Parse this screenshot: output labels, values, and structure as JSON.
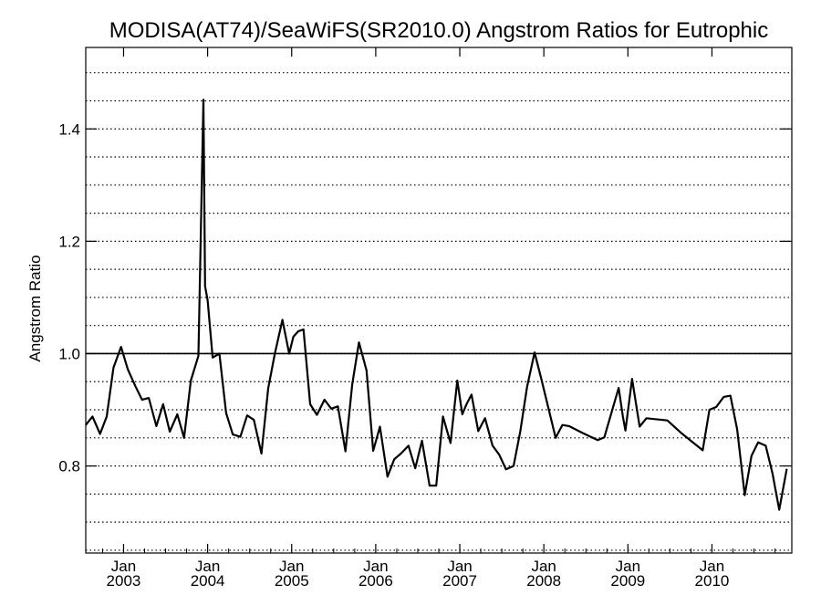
{
  "chart_data": {
    "type": "line",
    "title": "MODISA(AT74)/SeaWiFS(SR2010.0)  Angstrom Ratios for Eutrophic",
    "xlabel": "",
    "ylabel": "Angstrom Ratio",
    "xlim": [
      2002.55,
      2010.95
    ],
    "ylim": [
      0.645,
      1.545
    ],
    "y_ticks": [
      {
        "value": 0.8,
        "label": "0.8"
      },
      {
        "value": 1.0,
        "label": "1.0"
      },
      {
        "value": 1.2,
        "label": "1.2"
      },
      {
        "value": 1.4,
        "label": "1.4"
      }
    ],
    "x_ticks": [
      {
        "value": 2003.0,
        "label": "Jan",
        "year": "2003"
      },
      {
        "value": 2004.0,
        "label": "Jan",
        "year": "2004"
      },
      {
        "value": 2005.0,
        "label": "Jan",
        "year": "2005"
      },
      {
        "value": 2006.0,
        "label": "Jan",
        "year": "2006"
      },
      {
        "value": 2007.0,
        "label": "Jan",
        "year": "2007"
      },
      {
        "value": 2008.0,
        "label": "Jan",
        "year": "2008"
      },
      {
        "value": 2009.0,
        "label": "Jan",
        "year": "2009"
      },
      {
        "value": 2010.0,
        "label": "Jan",
        "year": "2010"
      }
    ],
    "grid": true,
    "grid_style": "dotted",
    "reference_line": 1.0,
    "line_color": "#000000",
    "series": [
      {
        "x": [
          2002.55,
          2002.63,
          2002.72,
          2002.8,
          2002.88,
          2002.97,
          2003.05,
          2003.14,
          2003.22,
          2003.3,
          2003.39,
          2003.47,
          2003.55,
          2003.64,
          2003.72,
          2003.8,
          2003.89,
          2003.95,
          2003.97,
          2004.0,
          2004.06,
          2004.14,
          2004.22,
          2004.3,
          2004.39,
          2004.47,
          2004.55,
          2004.64,
          2004.72,
          2004.8,
          2004.89,
          2004.97,
          2005.02,
          2005.08,
          2005.14,
          2005.22,
          2005.3,
          2005.39,
          2005.47,
          2005.55,
          2005.64,
          2005.72,
          2005.8,
          2005.89,
          2005.97,
          2006.05,
          2006.14,
          2006.22,
          2006.3,
          2006.39,
          2006.47,
          2006.55,
          2006.64,
          2006.72,
          2006.8,
          2006.89,
          2006.97,
          2007.03,
          2007.08,
          2007.14,
          2007.22,
          2007.3,
          2007.39,
          2007.47,
          2007.55,
          2007.64,
          2007.72,
          2007.8,
          2007.89,
          2007.97,
          2008.14,
          2008.22,
          2008.3,
          2008.47,
          2008.64,
          2008.72,
          2008.89,
          2008.94,
          2008.97,
          2009.05,
          2009.14,
          2009.22,
          2009.47,
          2009.64,
          2009.89,
          2009.97,
          2010.05,
          2010.14,
          2010.22,
          2010.3,
          2010.39,
          2010.47,
          2010.55,
          2010.64,
          2010.72,
          2010.8,
          2010.89
        ],
        "y": [
          0.873,
          0.888,
          0.857,
          0.888,
          0.975,
          1.012,
          0.972,
          0.942,
          0.918,
          0.921,
          0.871,
          0.91,
          0.861,
          0.892,
          0.85,
          0.952,
          0.996,
          1.452,
          1.12,
          1.095,
          0.993,
          1.0,
          0.894,
          0.856,
          0.852,
          0.89,
          0.882,
          0.822,
          0.938,
          1.0,
          1.06,
          1.0,
          1.03,
          1.04,
          1.043,
          0.91,
          0.891,
          0.918,
          0.902,
          0.906,
          0.826,
          0.945,
          1.02,
          0.97,
          0.827,
          0.87,
          0.781,
          0.812,
          0.822,
          0.836,
          0.796,
          0.845,
          0.765,
          0.765,
          0.888,
          0.841,
          0.952,
          0.892,
          0.91,
          0.927,
          0.862,
          0.885,
          0.836,
          0.82,
          0.794,
          0.8,
          0.862,
          0.94,
          1.002,
          0.955,
          0.85,
          0.873,
          0.871,
          0.858,
          0.846,
          0.851,
          0.939,
          0.888,
          0.863,
          0.955,
          0.87,
          0.885,
          0.881,
          0.858,
          0.828,
          0.9,
          0.905,
          0.923,
          0.925,
          0.865,
          0.748,
          0.818,
          0.842,
          0.836,
          0.787,
          0.722,
          0.795
        ]
      }
    ]
  }
}
